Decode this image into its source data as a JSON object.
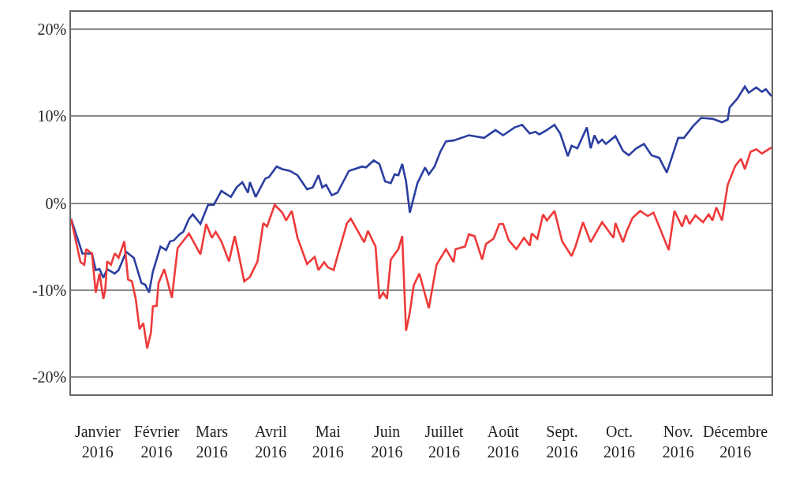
{
  "chart_data": {
    "type": "line",
    "xlim": [
      "2016-01-01",
      "2017-01-03"
    ],
    "ylim": [
      -22,
      22
    ],
    "xticks": [
      {
        "value": "2016-01-15",
        "label": "Janvier 2016"
      },
      {
        "value": "2016-02-15",
        "label": "Février 2016"
      },
      {
        "value": "2016-03-15",
        "label": "Mars 2016"
      },
      {
        "value": "2016-04-15",
        "label": "Avril 2016"
      },
      {
        "value": "2016-05-15",
        "label": "Mai 2016"
      },
      {
        "value": "2016-06-15",
        "label": "Juin 2016"
      },
      {
        "value": "2016-07-15",
        "label": "Juillet 2016"
      },
      {
        "value": "2016-08-15",
        "label": "Août 2016"
      },
      {
        "value": "2016-09-15",
        "label": "Sept. 2016"
      },
      {
        "value": "2016-10-15",
        "label": "Oct. 2016"
      },
      {
        "value": "2016-11-15",
        "label": "Nov. 2016"
      },
      {
        "value": "2016-12-15",
        "label": "Décembre 2016"
      }
    ],
    "yticks": [
      {
        "value": 20,
        "label": "20%"
      },
      {
        "value": 10,
        "label": "10%"
      },
      {
        "value": 0,
        "label": "0%"
      },
      {
        "value": -10,
        "label": "-10%"
      },
      {
        "value": -20,
        "label": "-20%"
      }
    ],
    "grid": "y",
    "marker": "none",
    "line_style": "solid",
    "series": [
      {
        "color": "#2b3fa0",
        "x": [
          "2016-01-01",
          "2016-01-07",
          "2016-01-12",
          "2016-01-14",
          "2016-01-16",
          "2016-01-18",
          "2016-01-20",
          "2016-01-24",
          "2016-01-26",
          "2016-01-30",
          "2016-02-03",
          "2016-02-07",
          "2016-02-09",
          "2016-02-11",
          "2016-02-13",
          "2016-02-17",
          "2016-02-20",
          "2016-02-22",
          "2016-02-24",
          "2016-02-27",
          "2016-02-29",
          "2016-03-03",
          "2016-03-05",
          "2016-03-09",
          "2016-03-13",
          "2016-03-16",
          "2016-03-20",
          "2016-03-25",
          "2016-03-28",
          "2016-03-31",
          "2016-04-03",
          "2016-04-04",
          "2016-04-07",
          "2016-04-12",
          "2016-04-14",
          "2016-04-18",
          "2016-04-21",
          "2016-04-25",
          "2016-04-29",
          "2016-05-04",
          "2016-05-07",
          "2016-05-10",
          "2016-05-12",
          "2016-05-14",
          "2016-05-17",
          "2016-05-20",
          "2016-05-26",
          "2016-06-02",
          "2016-06-04",
          "2016-06-08",
          "2016-06-11",
          "2016-06-14",
          "2016-06-17",
          "2016-06-19",
          "2016-06-21",
          "2016-06-23",
          "2016-06-25",
          "2016-06-27",
          "2016-07-01",
          "2016-07-05",
          "2016-07-07",
          "2016-07-10",
          "2016-07-13",
          "2016-07-16",
          "2016-07-20",
          "2016-07-28",
          "2016-08-05",
          "2016-08-11",
          "2016-08-15",
          "2016-08-21",
          "2016-08-25",
          "2016-08-29",
          "2016-09-01",
          "2016-09-03",
          "2016-09-07",
          "2016-09-11",
          "2016-09-14",
          "2016-09-18",
          "2016-09-20",
          "2016-09-23",
          "2016-09-28",
          "2016-09-30",
          "2016-10-02",
          "2016-10-04",
          "2016-10-06",
          "2016-10-08",
          "2016-10-13",
          "2016-10-17",
          "2016-10-20",
          "2016-10-24",
          "2016-10-28",
          "2016-11-01",
          "2016-11-05",
          "2016-11-09",
          "2016-11-15",
          "2016-11-18",
          "2016-11-23",
          "2016-11-27",
          "2016-12-03",
          "2016-12-08",
          "2016-12-11",
          "2016-12-12",
          "2016-12-16",
          "2016-12-20",
          "2016-12-22",
          "2016-12-26",
          "2016-12-29",
          "2016-12-31",
          "2017-01-03"
        ],
        "values": [
          -1.8,
          -5.8,
          -5.8,
          -7.7,
          -7.6,
          -8.6,
          -7.6,
          -8.1,
          -7.7,
          -5.6,
          -6.3,
          -9.2,
          -9.4,
          -10.3,
          -7.9,
          -5.0,
          -5.4,
          -4.4,
          -4.3,
          -3.6,
          -3.3,
          -1.8,
          -1.3,
          -2.4,
          -0.2,
          -0.2,
          1.4,
          0.7,
          1.8,
          2.4,
          1.2,
          2.4,
          0.7,
          2.8,
          3.0,
          4.2,
          3.9,
          3.7,
          3.2,
          1.6,
          1.8,
          3.2,
          1.8,
          2.1,
          0.9,
          1.2,
          3.7,
          4.2,
          4.1,
          4.9,
          4.5,
          2.5,
          2.3,
          3.3,
          3.2,
          4.5,
          2.5,
          -1.1,
          2.3,
          4.1,
          3.3,
          4.2,
          5.9,
          7.1,
          7.2,
          7.8,
          7.5,
          8.4,
          7.8,
          8.7,
          9.0,
          8.0,
          8.2,
          7.9,
          8.4,
          9.0,
          8.0,
          5.4,
          6.6,
          6.3,
          8.7,
          6.3,
          7.8,
          6.9,
          7.3,
          6.8,
          7.7,
          6.0,
          5.5,
          6.3,
          6.8,
          5.5,
          5.2,
          3.5,
          7.5,
          7.5,
          8.9,
          9.8,
          9.7,
          9.3,
          9.6,
          11.0,
          12.0,
          13.4,
          12.7,
          13.3,
          12.8,
          13.1,
          12.3
        ]
      },
      {
        "color": "#ee3a3a",
        "x": [
          "2016-01-01",
          "2016-01-06",
          "2016-01-08",
          "2016-01-09",
          "2016-01-12",
          "2016-01-14",
          "2016-01-16",
          "2016-01-18",
          "2016-01-19",
          "2016-01-20",
          "2016-01-22",
          "2016-01-24",
          "2016-01-26",
          "2016-01-29",
          "2016-01-31",
          "2016-02-02",
          "2016-02-04",
          "2016-02-06",
          "2016-02-08",
          "2016-02-10",
          "2016-02-12",
          "2016-02-13",
          "2016-02-15",
          "2016-02-16",
          "2016-02-19",
          "2016-02-23",
          "2016-02-26",
          "2016-03-03",
          "2016-03-09",
          "2016-03-12",
          "2016-03-15",
          "2016-03-17",
          "2016-03-20",
          "2016-03-24",
          "2016-03-27",
          "2016-03-29",
          "2016-04-01",
          "2016-04-04",
          "2016-04-08",
          "2016-04-11",
          "2016-04-13",
          "2016-04-17",
          "2016-04-21",
          "2016-04-23",
          "2016-04-26",
          "2016-04-29",
          "2016-05-04",
          "2016-05-08",
          "2016-05-10",
          "2016-05-13",
          "2016-05-15",
          "2016-05-18",
          "2016-05-20",
          "2016-05-25",
          "2016-05-27",
          "2016-06-03",
          "2016-06-05",
          "2016-06-09",
          "2016-06-11",
          "2016-06-13",
          "2016-06-15",
          "2016-06-17",
          "2016-06-21",
          "2016-06-23",
          "2016-06-25",
          "2016-06-27",
          "2016-06-29",
          "2016-07-02",
          "2016-07-07",
          "2016-07-11",
          "2016-07-16",
          "2016-07-20",
          "2016-07-21",
          "2016-07-26",
          "2016-07-28",
          "2016-07-31",
          "2016-08-04",
          "2016-08-06",
          "2016-08-10",
          "2016-08-13",
          "2016-08-15",
          "2016-08-18",
          "2016-08-22",
          "2016-08-26",
          "2016-08-29",
          "2016-08-30",
          "2016-09-02",
          "2016-09-05",
          "2016-09-07",
          "2016-09-11",
          "2016-09-15",
          "2016-09-20",
          "2016-09-22",
          "2016-09-26",
          "2016-09-30",
          "2016-10-06",
          "2016-10-12",
          "2016-10-13",
          "2016-10-17",
          "2016-10-19",
          "2016-10-22",
          "2016-10-26",
          "2016-10-30",
          "2016-11-02",
          "2016-11-10",
          "2016-11-13",
          "2016-11-17",
          "2016-11-19",
          "2016-11-21",
          "2016-11-24",
          "2016-11-28",
          "2016-12-01",
          "2016-12-03",
          "2016-12-05",
          "2016-12-08",
          "2016-12-11",
          "2016-12-15",
          "2016-12-18",
          "2016-12-20",
          "2016-12-23",
          "2016-12-26",
          "2016-12-29",
          "2017-01-03"
        ],
        "values": [
          -1.8,
          -6.8,
          -7.1,
          -5.3,
          -5.8,
          -10.3,
          -8.1,
          -11.0,
          -10.0,
          -6.7,
          -7.1,
          -5.8,
          -6.3,
          -4.4,
          -8.8,
          -9.0,
          -11.0,
          -14.5,
          -13.8,
          -16.7,
          -14.9,
          -11.9,
          -11.8,
          -9.2,
          -7.6,
          -10.9,
          -5.2,
          -3.5,
          -5.9,
          -2.4,
          -4.0,
          -3.3,
          -4.4,
          -6.7,
          -3.8,
          -5.8,
          -9.0,
          -8.5,
          -6.7,
          -2.3,
          -2.7,
          -0.2,
          -1.1,
          -2.0,
          -0.9,
          -4.0,
          -7.0,
          -6.2,
          -7.7,
          -6.8,
          -7.4,
          -7.7,
          -6.1,
          -2.3,
          -1.8,
          -4.5,
          -3.2,
          -5.0,
          -11.0,
          -10.3,
          -11.0,
          -6.5,
          -5.3,
          -3.8,
          -14.7,
          -12.6,
          -9.5,
          -8.1,
          -12.1,
          -7.1,
          -5.3,
          -6.8,
          -5.3,
          -5.0,
          -3.6,
          -3.8,
          -6.5,
          -4.7,
          -4.1,
          -2.4,
          -2.4,
          -4.3,
          -5.3,
          -4.0,
          -4.9,
          -3.5,
          -4.1,
          -1.3,
          -2.0,
          -0.9,
          -4.4,
          -6.1,
          -5.0,
          -2.2,
          -4.5,
          -2.2,
          -4.0,
          -2.3,
          -4.5,
          -3.2,
          -1.7,
          -0.9,
          -1.5,
          -1.1,
          -5.4,
          -0.9,
          -2.7,
          -1.4,
          -2.4,
          -1.4,
          -2.2,
          -1.3,
          -2.0,
          -0.5,
          -2.0,
          2.1,
          4.3,
          5.1,
          3.9,
          5.9,
          6.2,
          5.7,
          6.4
        ]
      }
    ]
  }
}
